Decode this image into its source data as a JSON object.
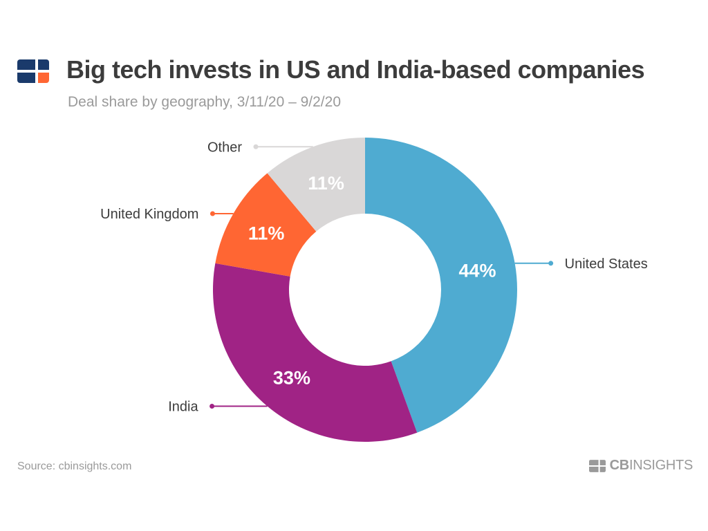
{
  "header": {
    "title": "Big tech invests in US and India-based companies",
    "subtitle": "Deal share by geography, 3/11/20 – 9/2/20"
  },
  "footer": {
    "source": "Source: cbinsights.com",
    "brand_bold": "CB",
    "brand_rest": "INSIGHTS"
  },
  "colors": {
    "logo_dark": "#1a3a6b",
    "logo_accent": "#ff6633",
    "text_muted": "#9a9a9a"
  },
  "chart_data": {
    "type": "pie",
    "donut": true,
    "title": "Big tech invests in US and India-based companies",
    "subtitle": "Deal share by geography, 3/11/20 – 9/2/20",
    "unit": "%",
    "slices": [
      {
        "label": "United States",
        "value": 44,
        "display": "44%",
        "color": "#4fabd1"
      },
      {
        "label": "India",
        "value": 33,
        "display": "33%",
        "color": "#a02385"
      },
      {
        "label": "United Kingdom",
        "value": 11,
        "display": "11%",
        "color": "#ff6633"
      },
      {
        "label": "Other",
        "value": 11,
        "display": "11%",
        "color": "#d9d7d7"
      }
    ]
  }
}
